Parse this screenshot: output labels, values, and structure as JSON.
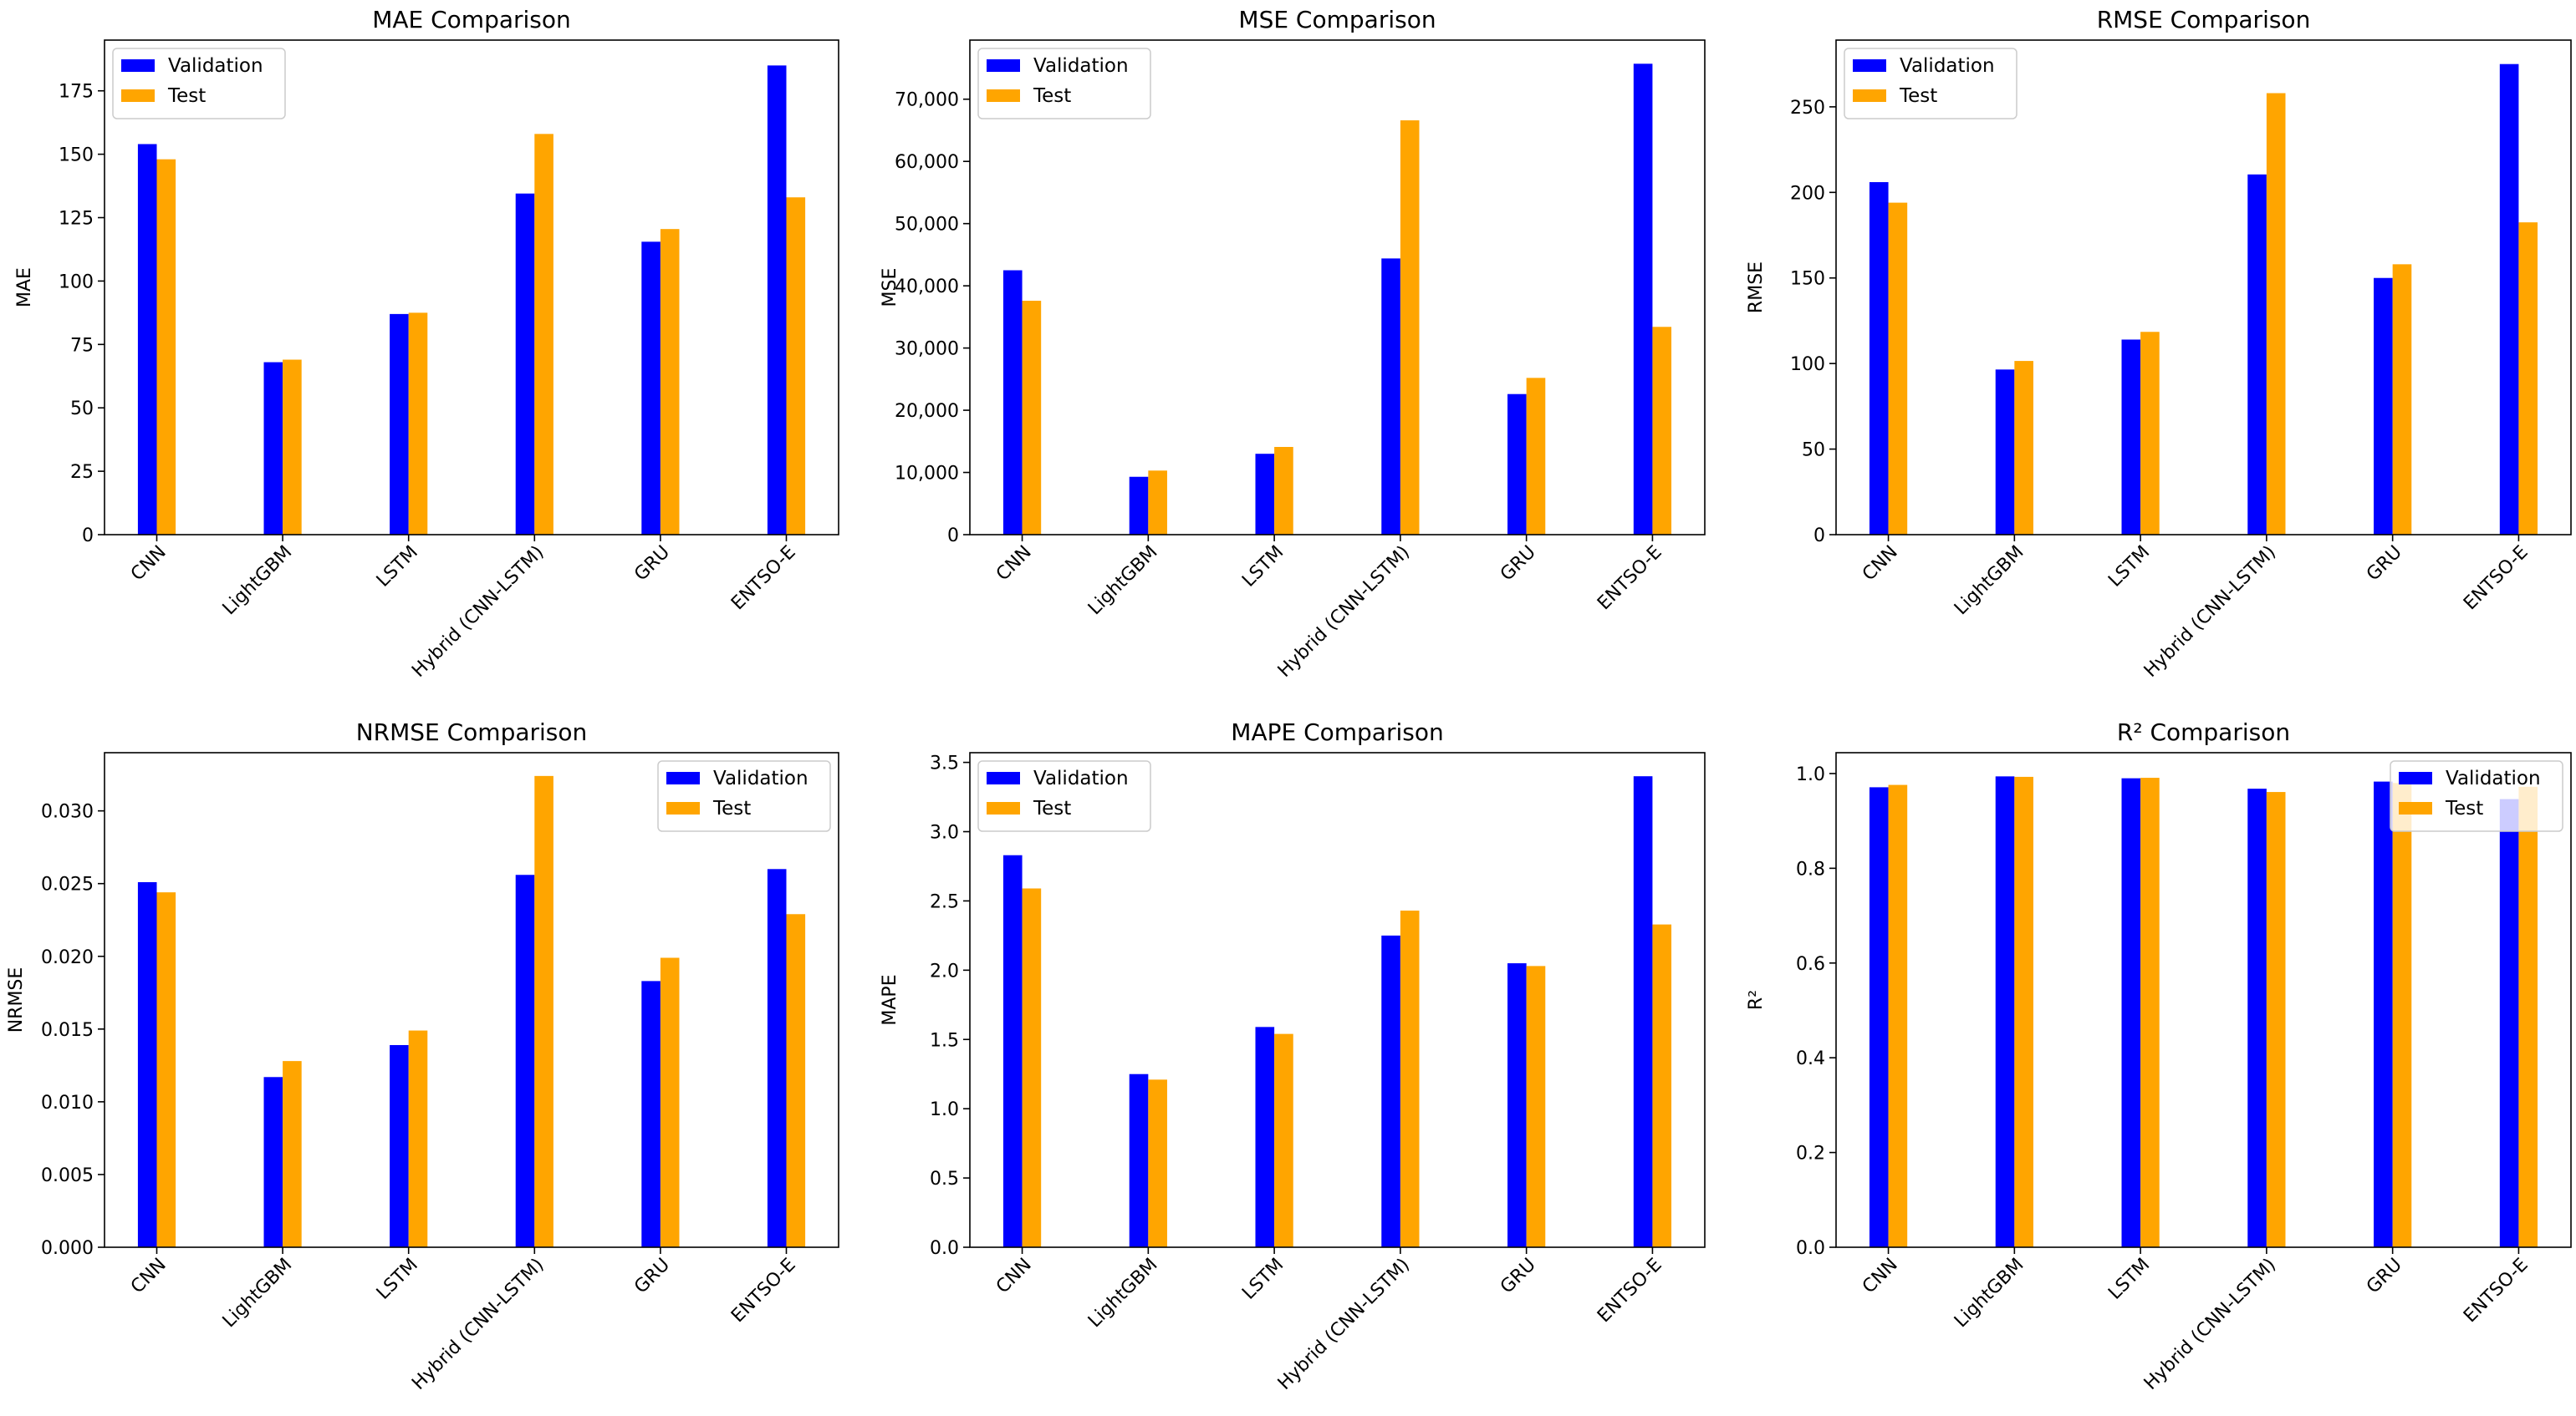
{
  "colors": {
    "validation": "#0000ff",
    "test": "#ffa500",
    "axes": "#000000",
    "legend_border": "#cccccc",
    "background": "#ffffff"
  },
  "chart_data": [
    {
      "type": "bar",
      "title": "MAE Comparison",
      "xlabel": "",
      "ylabel": "MAE",
      "categories": [
        "CNN",
        "LightGBM",
        "LSTM",
        "Hybrid (CNN-LSTM)",
        "GRU",
        "ENTSO-E"
      ],
      "series": [
        {
          "name": "Validation",
          "values": [
            154,
            68,
            87,
            134.5,
            115.5,
            185
          ]
        },
        {
          "name": "Test",
          "values": [
            148,
            69,
            87.5,
            158,
            120.5,
            133
          ]
        }
      ],
      "ylim": [
        0,
        195
      ],
      "yticks": [
        0,
        25,
        50,
        75,
        100,
        125,
        150,
        175
      ],
      "ytick_labels": [
        "0",
        "25",
        "50",
        "75",
        "100",
        "125",
        "150",
        "175"
      ],
      "legend": "upper-left",
      "grid": false
    },
    {
      "type": "bar",
      "title": "MSE Comparison",
      "xlabel": "",
      "ylabel": "MSE",
      "categories": [
        "CNN",
        "LightGBM",
        "LSTM",
        "Hybrid (CNN-LSTM)",
        "GRU",
        "ENTSO-E"
      ],
      "series": [
        {
          "name": "Validation",
          "values": [
            42500,
            9300,
            13000,
            44400,
            22600,
            75700
          ]
        },
        {
          "name": "Test",
          "values": [
            37600,
            10300,
            14100,
            66600,
            25200,
            33400
          ]
        }
      ],
      "ylim": [
        0,
        79500
      ],
      "yticks": [
        0,
        10000,
        20000,
        30000,
        40000,
        50000,
        60000,
        70000
      ],
      "ytick_labels": [
        "0",
        "10,000",
        "20,000",
        "30,000",
        "40,000",
        "50,000",
        "60,000",
        "70,000"
      ],
      "legend": "upper-left",
      "grid": false
    },
    {
      "type": "bar",
      "title": "RMSE Comparison",
      "xlabel": "",
      "ylabel": "RMSE",
      "categories": [
        "CNN",
        "LightGBM",
        "LSTM",
        "Hybrid (CNN-LSTM)",
        "GRU",
        "ENTSO-E"
      ],
      "series": [
        {
          "name": "Validation",
          "values": [
            206,
            96.5,
            114,
            210.5,
            150,
            275
          ]
        },
        {
          "name": "Test",
          "values": [
            194,
            101.5,
            118.5,
            258,
            158,
            182.5
          ]
        }
      ],
      "ylim": [
        0,
        289
      ],
      "yticks": [
        0,
        50,
        100,
        150,
        200,
        250
      ],
      "ytick_labels": [
        "0",
        "50",
        "100",
        "150",
        "200",
        "250"
      ],
      "legend": "upper-left",
      "grid": false
    },
    {
      "type": "bar",
      "title": "NRMSE Comparison",
      "xlabel": "",
      "ylabel": "NRMSE",
      "categories": [
        "CNN",
        "LightGBM",
        "LSTM",
        "Hybrid (CNN-LSTM)",
        "GRU",
        "ENTSO-E"
      ],
      "series": [
        {
          "name": "Validation",
          "values": [
            0.0251,
            0.0117,
            0.0139,
            0.0256,
            0.0183,
            0.026
          ]
        },
        {
          "name": "Test",
          "values": [
            0.0244,
            0.0128,
            0.0149,
            0.0324,
            0.0199,
            0.0229
          ]
        }
      ],
      "ylim": [
        0,
        0.034
      ],
      "yticks": [
        0,
        0.005,
        0.01,
        0.015,
        0.02,
        0.025,
        0.03
      ],
      "ytick_labels": [
        "0.000",
        "0.005",
        "0.010",
        "0.015",
        "0.020",
        "0.025",
        "0.030"
      ],
      "legend": "upper-right",
      "grid": false
    },
    {
      "type": "bar",
      "title": "MAPE Comparison",
      "xlabel": "",
      "ylabel": "MAPE",
      "categories": [
        "CNN",
        "LightGBM",
        "LSTM",
        "Hybrid (CNN-LSTM)",
        "GRU",
        "ENTSO-E"
      ],
      "series": [
        {
          "name": "Validation",
          "values": [
            2.83,
            1.25,
            1.59,
            2.25,
            2.05,
            3.4
          ]
        },
        {
          "name": "Test",
          "values": [
            2.59,
            1.21,
            1.54,
            2.43,
            2.03,
            2.33
          ]
        }
      ],
      "ylim": [
        0,
        3.57
      ],
      "yticks": [
        0,
        0.5,
        1,
        1.5,
        2,
        2.5,
        3,
        3.5
      ],
      "ytick_labels": [
        "0.0",
        "0.5",
        "1.0",
        "1.5",
        "2.0",
        "2.5",
        "3.0",
        "3.5"
      ],
      "legend": "upper-left",
      "grid": false
    },
    {
      "type": "bar",
      "title": "R² Comparison",
      "xlabel": "",
      "ylabel": "R²",
      "categories": [
        "CNN",
        "LightGBM",
        "LSTM",
        "Hybrid (CNN-LSTM)",
        "GRU",
        "ENTSO-E"
      ],
      "series": [
        {
          "name": "Validation",
          "values": [
            0.971,
            0.994,
            0.99,
            0.968,
            0.983,
            0.946
          ]
        },
        {
          "name": "Test",
          "values": [
            0.976,
            0.993,
            0.991,
            0.961,
            0.98,
            0.972
          ]
        }
      ],
      "ylim": [
        0,
        1.044
      ],
      "yticks": [
        0,
        0.2,
        0.4,
        0.6,
        0.8,
        1.0
      ],
      "ytick_labels": [
        "0.0",
        "0.2",
        "0.4",
        "0.6",
        "0.8",
        "1.0"
      ],
      "legend": "upper-right",
      "grid": false
    }
  ]
}
